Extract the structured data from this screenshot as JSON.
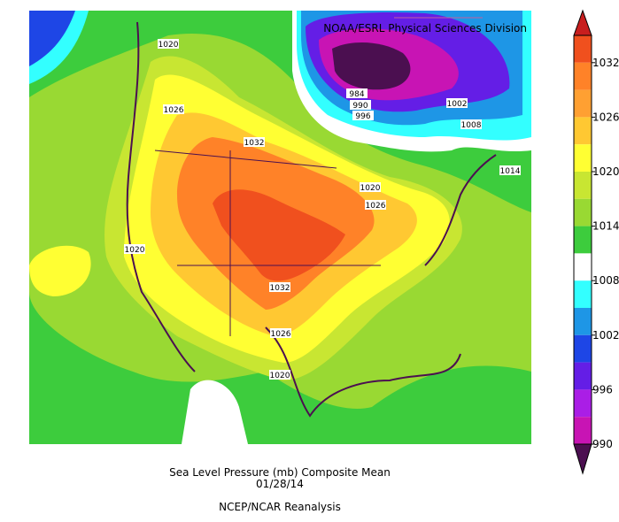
{
  "map": {
    "header": "NOAA/ESRL Physical Sciences Division",
    "contour_labels": [
      "1020",
      "1026",
      "1032",
      "984",
      "990",
      "996",
      "1002",
      "1008",
      "1014",
      "1020",
      "1026",
      "1020",
      "1032",
      "1026",
      "1020"
    ],
    "caption": [
      "Sea Level Pressure (mb) Composite Mean",
      "01/28/14",
      "NCEP/NCAR Reanalysis"
    ],
    "colorbar": {
      "range": [
        1035,
        990
      ],
      "ticks": [
        1032,
        1026,
        1020,
        1014,
        1008,
        1002,
        996,
        990
      ],
      "colors": [
        "#f0501e",
        "#ff8228",
        "#ffa032",
        "#ffc832",
        "#ffff33",
        "#c8e632",
        "#99d933",
        "#3dcc3d",
        "#ffffff",
        "#33ffff",
        "#1e96e6",
        "#1e46e6",
        "#641ee6",
        "#aa1ee6",
        "#c814b4"
      ],
      "over_color": "#c81e1e",
      "under_color": "#4b0f50"
    }
  }
}
